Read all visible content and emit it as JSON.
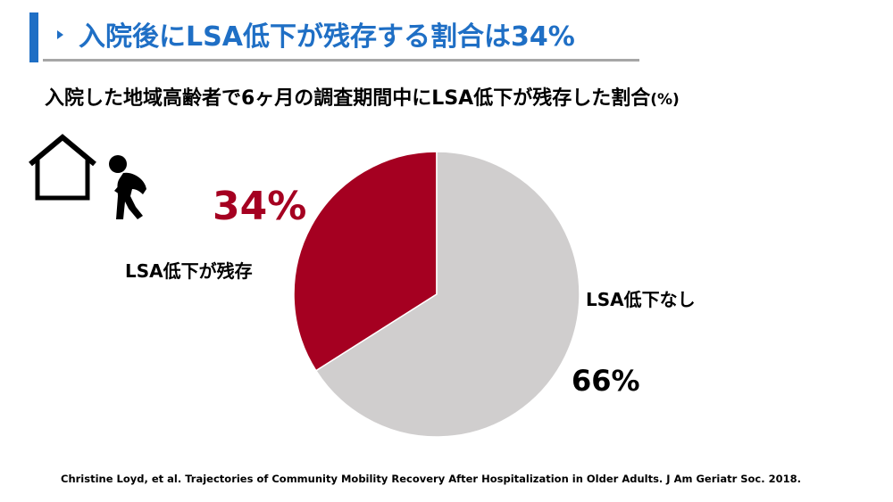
{
  "slide": {
    "title": "入院後にLSA低下が残存する割合は34%",
    "subtitle_main": "入院した地域高齢者で6ヶ月の調査期間中にLSA低下が残存した割合",
    "subtitle_unit": "(%)",
    "citation": "Christine Loyd, et al. Trajectories of Community Mobility Recovery After Hospitalization in Older Adults. J Am Geriatr Soc. 2018.",
    "accent_color": "#1f6fc5"
  },
  "icons": {
    "house": "house-outline-icon",
    "person": "stooped-person-icon"
  },
  "chart_data": {
    "type": "pie",
    "unit": "%",
    "categories": [
      "LSA低下が残存",
      "LSA低下なし"
    ],
    "values": [
      34,
      66
    ],
    "value_labels": [
      "34%",
      "66%"
    ],
    "colors": [
      "#a50021",
      "#d0cece"
    ],
    "start": "12 o'clock",
    "direction": "counterclockwise"
  }
}
